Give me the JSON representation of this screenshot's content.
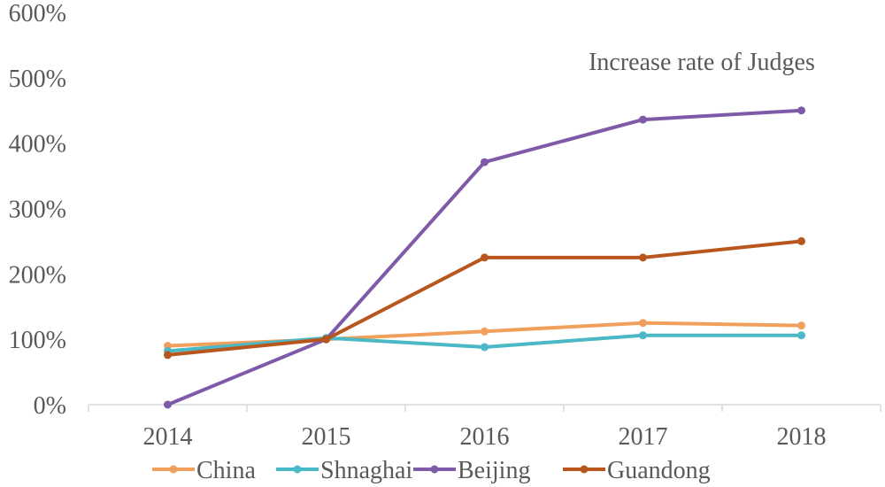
{
  "chart_data": {
    "type": "line",
    "title": "Increase rate of Judges",
    "xlabel": "",
    "ylabel": "",
    "categories": [
      "2014",
      "2015",
      "2016",
      "2017",
      "2018"
    ],
    "ylim": [
      0,
      600
    ],
    "yticks": [
      0,
      100,
      200,
      300,
      400,
      500,
      600
    ],
    "ytick_labels": [
      "0%",
      "100%",
      "200%",
      "300%",
      "400%",
      "500%",
      "600%"
    ],
    "grid": false,
    "legend_position": "bottom",
    "series": [
      {
        "name": "China",
        "color": "#f0a05a",
        "values": [
          90,
          100,
          112,
          125,
          121
        ]
      },
      {
        "name": "Shnaghai",
        "color": "#4bb8c5",
        "values": [
          82,
          102,
          88,
          106,
          106
        ]
      },
      {
        "name": "Beijing",
        "color": "#7f5aa8",
        "values": [
          0,
          100,
          371,
          436,
          450
        ]
      },
      {
        "name": "Guandong",
        "color": "#b8561d",
        "values": [
          76,
          100,
          225,
          225,
          250
        ]
      }
    ]
  }
}
